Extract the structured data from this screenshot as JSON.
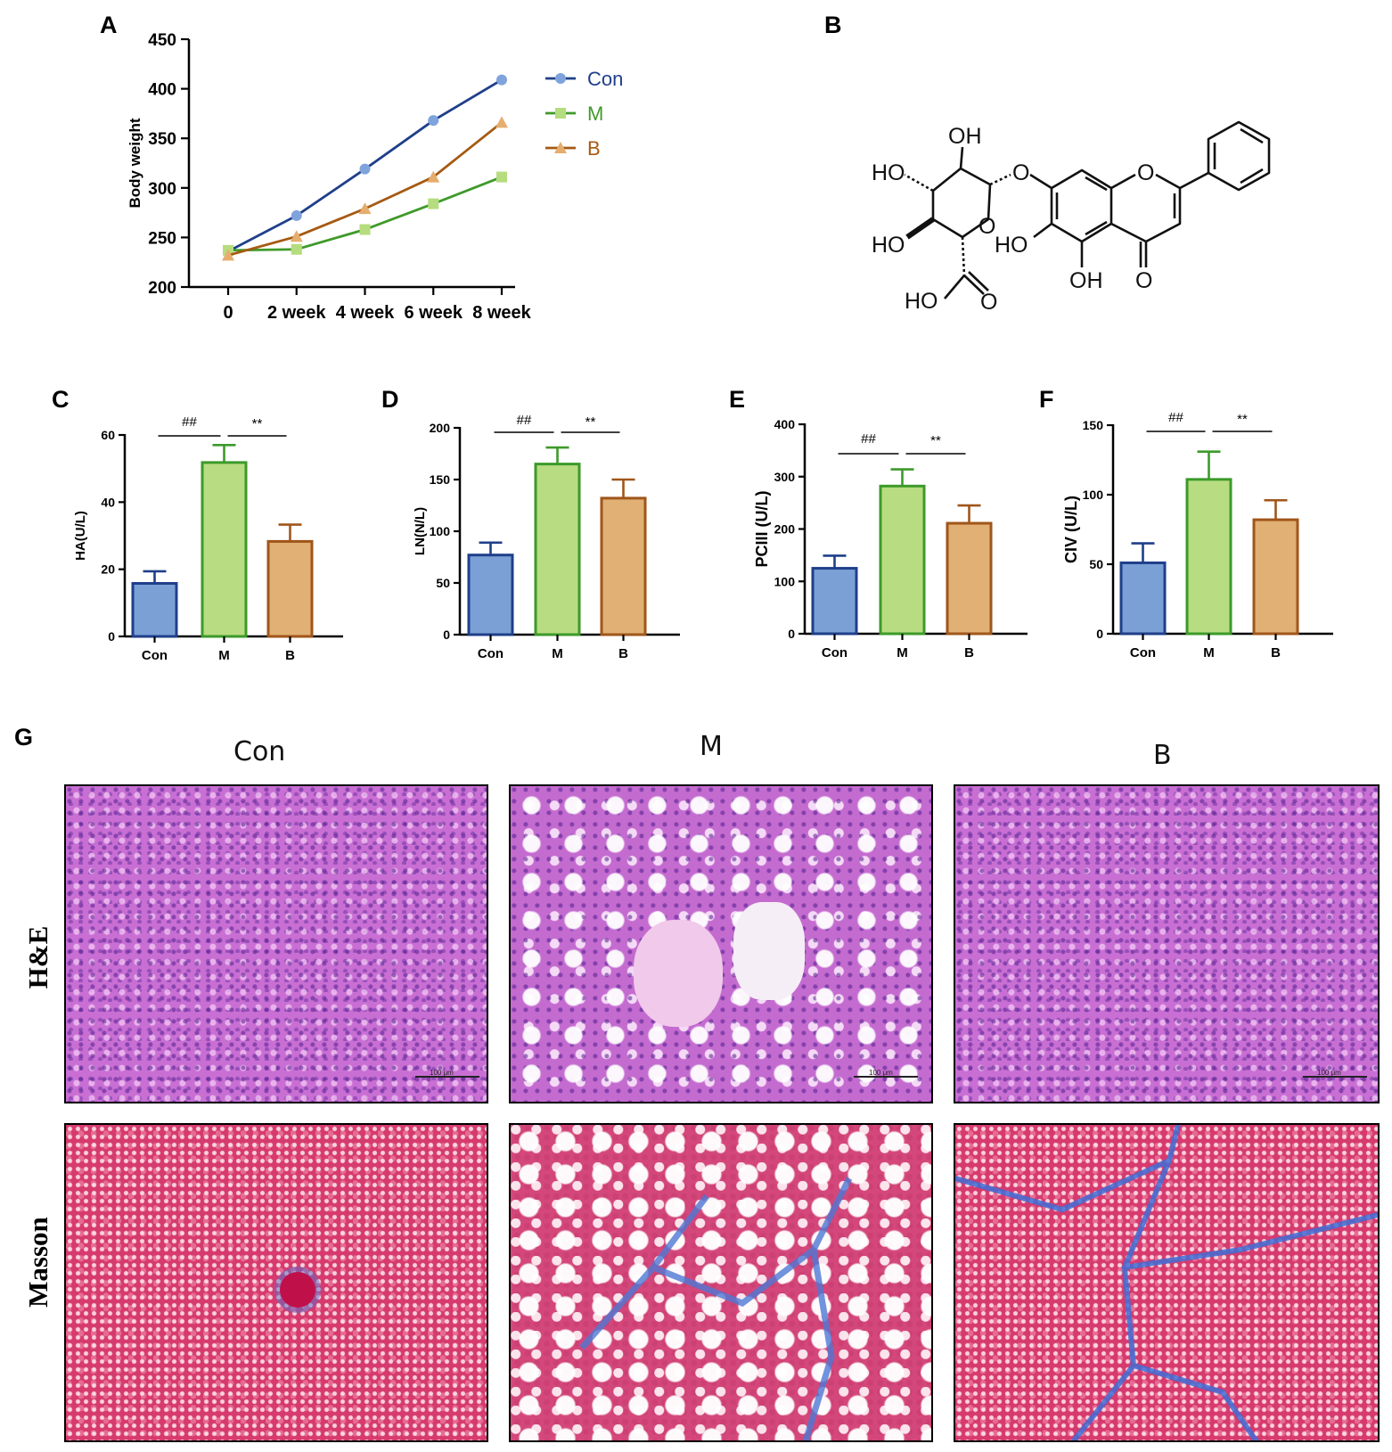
{
  "panel_labels": [
    "A",
    "B",
    "C",
    "D",
    "E",
    "F",
    "G"
  ],
  "chart_data": [
    {
      "id": "A",
      "type": "line",
      "ylabel": "Body weight",
      "xlabel": "",
      "categories": [
        "0",
        "2 week",
        "4 week",
        "6 week",
        "8 week"
      ],
      "ylim": [
        200,
        450
      ],
      "yticks": [
        200,
        250,
        300,
        350,
        400,
        450
      ],
      "legend_position": "right",
      "series": [
        {
          "name": "Con",
          "values": [
            236,
            272,
            319,
            368,
            409
          ],
          "color": "#1f3f8a",
          "marker_color": "#7fa3dc",
          "marker": "circle"
        },
        {
          "name": "M",
          "values": [
            237,
            238,
            258,
            284,
            311
          ],
          "color": "#3f9a2a",
          "marker_color": "#b5dc7e",
          "marker": "square"
        },
        {
          "name": "B",
          "values": [
            232,
            251,
            279,
            311,
            366
          ],
          "color": "#a55a12",
          "marker_color": "#e5ad6e",
          "marker": "triangle"
        }
      ]
    },
    {
      "id": "C",
      "type": "bar",
      "ylabel": "HA(U/L)",
      "categories": [
        "Con",
        "M",
        "B"
      ],
      "values": [
        15.8,
        51.8,
        28.3
      ],
      "errors": [
        3.6,
        5.2,
        5.0
      ],
      "ylim": [
        0,
        60
      ],
      "yticks": [
        0,
        20,
        40,
        60
      ],
      "significance": [
        {
          "from": 0,
          "to": 1,
          "label": "##"
        },
        {
          "from": 1,
          "to": 2,
          "label": "**"
        }
      ]
    },
    {
      "id": "D",
      "type": "bar",
      "ylabel": "LN(N/L)",
      "categories": [
        "Con",
        "M",
        "B"
      ],
      "values": [
        77,
        165,
        132
      ],
      "errors": [
        12,
        16,
        18
      ],
      "ylim": [
        0,
        200
      ],
      "yticks": [
        0,
        50,
        100,
        150,
        200
      ],
      "significance": [
        {
          "from": 0,
          "to": 1,
          "label": "##"
        },
        {
          "from": 1,
          "to": 2,
          "label": "**"
        }
      ]
    },
    {
      "id": "E",
      "type": "bar",
      "ylabel": "PCIII (U/L)",
      "categories": [
        "Con",
        "M",
        "B"
      ],
      "values": [
        125,
        282,
        211
      ],
      "errors": [
        24,
        32,
        34
      ],
      "ylim": [
        0,
        400
      ],
      "yticks": [
        0,
        100,
        200,
        300,
        400
      ],
      "significance": [
        {
          "from": 0,
          "to": 1,
          "label": "##"
        },
        {
          "from": 1,
          "to": 2,
          "label": "**"
        }
      ]
    },
    {
      "id": "F",
      "type": "bar",
      "ylabel": "CIV (U/L)",
      "categories": [
        "Con",
        "M",
        "B"
      ],
      "values": [
        51,
        111,
        82
      ],
      "errors": [
        14,
        20,
        14
      ],
      "ylim": [
        0,
        150
      ],
      "yticks": [
        0,
        50,
        100,
        150
      ],
      "significance": [
        {
          "from": 0,
          "to": 1,
          "label": "##"
        },
        {
          "from": 1,
          "to": 2,
          "label": "**"
        }
      ]
    }
  ],
  "bar_colors": {
    "fill": [
      "#7ba0d6",
      "#b8dc82",
      "#e0b074"
    ],
    "stroke": [
      "#1f3f8a",
      "#3c9a2a",
      "#a0561a"
    ]
  },
  "structure_labels": {
    "oh_top": "OH",
    "ho_left": "HO",
    "ho_bottom_left": "HO",
    "ho_inner": "HO",
    "ho_acid": "HO",
    "oh_bottom": "OH",
    "o_link": "O",
    "o_ring_sugar": "O",
    "o_ring_chromone": "O",
    "o_ketone": "O",
    "o_acid": "O"
  },
  "histology": {
    "columns": [
      "Con",
      "M",
      "B"
    ],
    "rows": [
      "H&E",
      "Masson"
    ],
    "scale_labels": [
      "100 μm",
      "100 μm",
      "100 μm"
    ]
  }
}
